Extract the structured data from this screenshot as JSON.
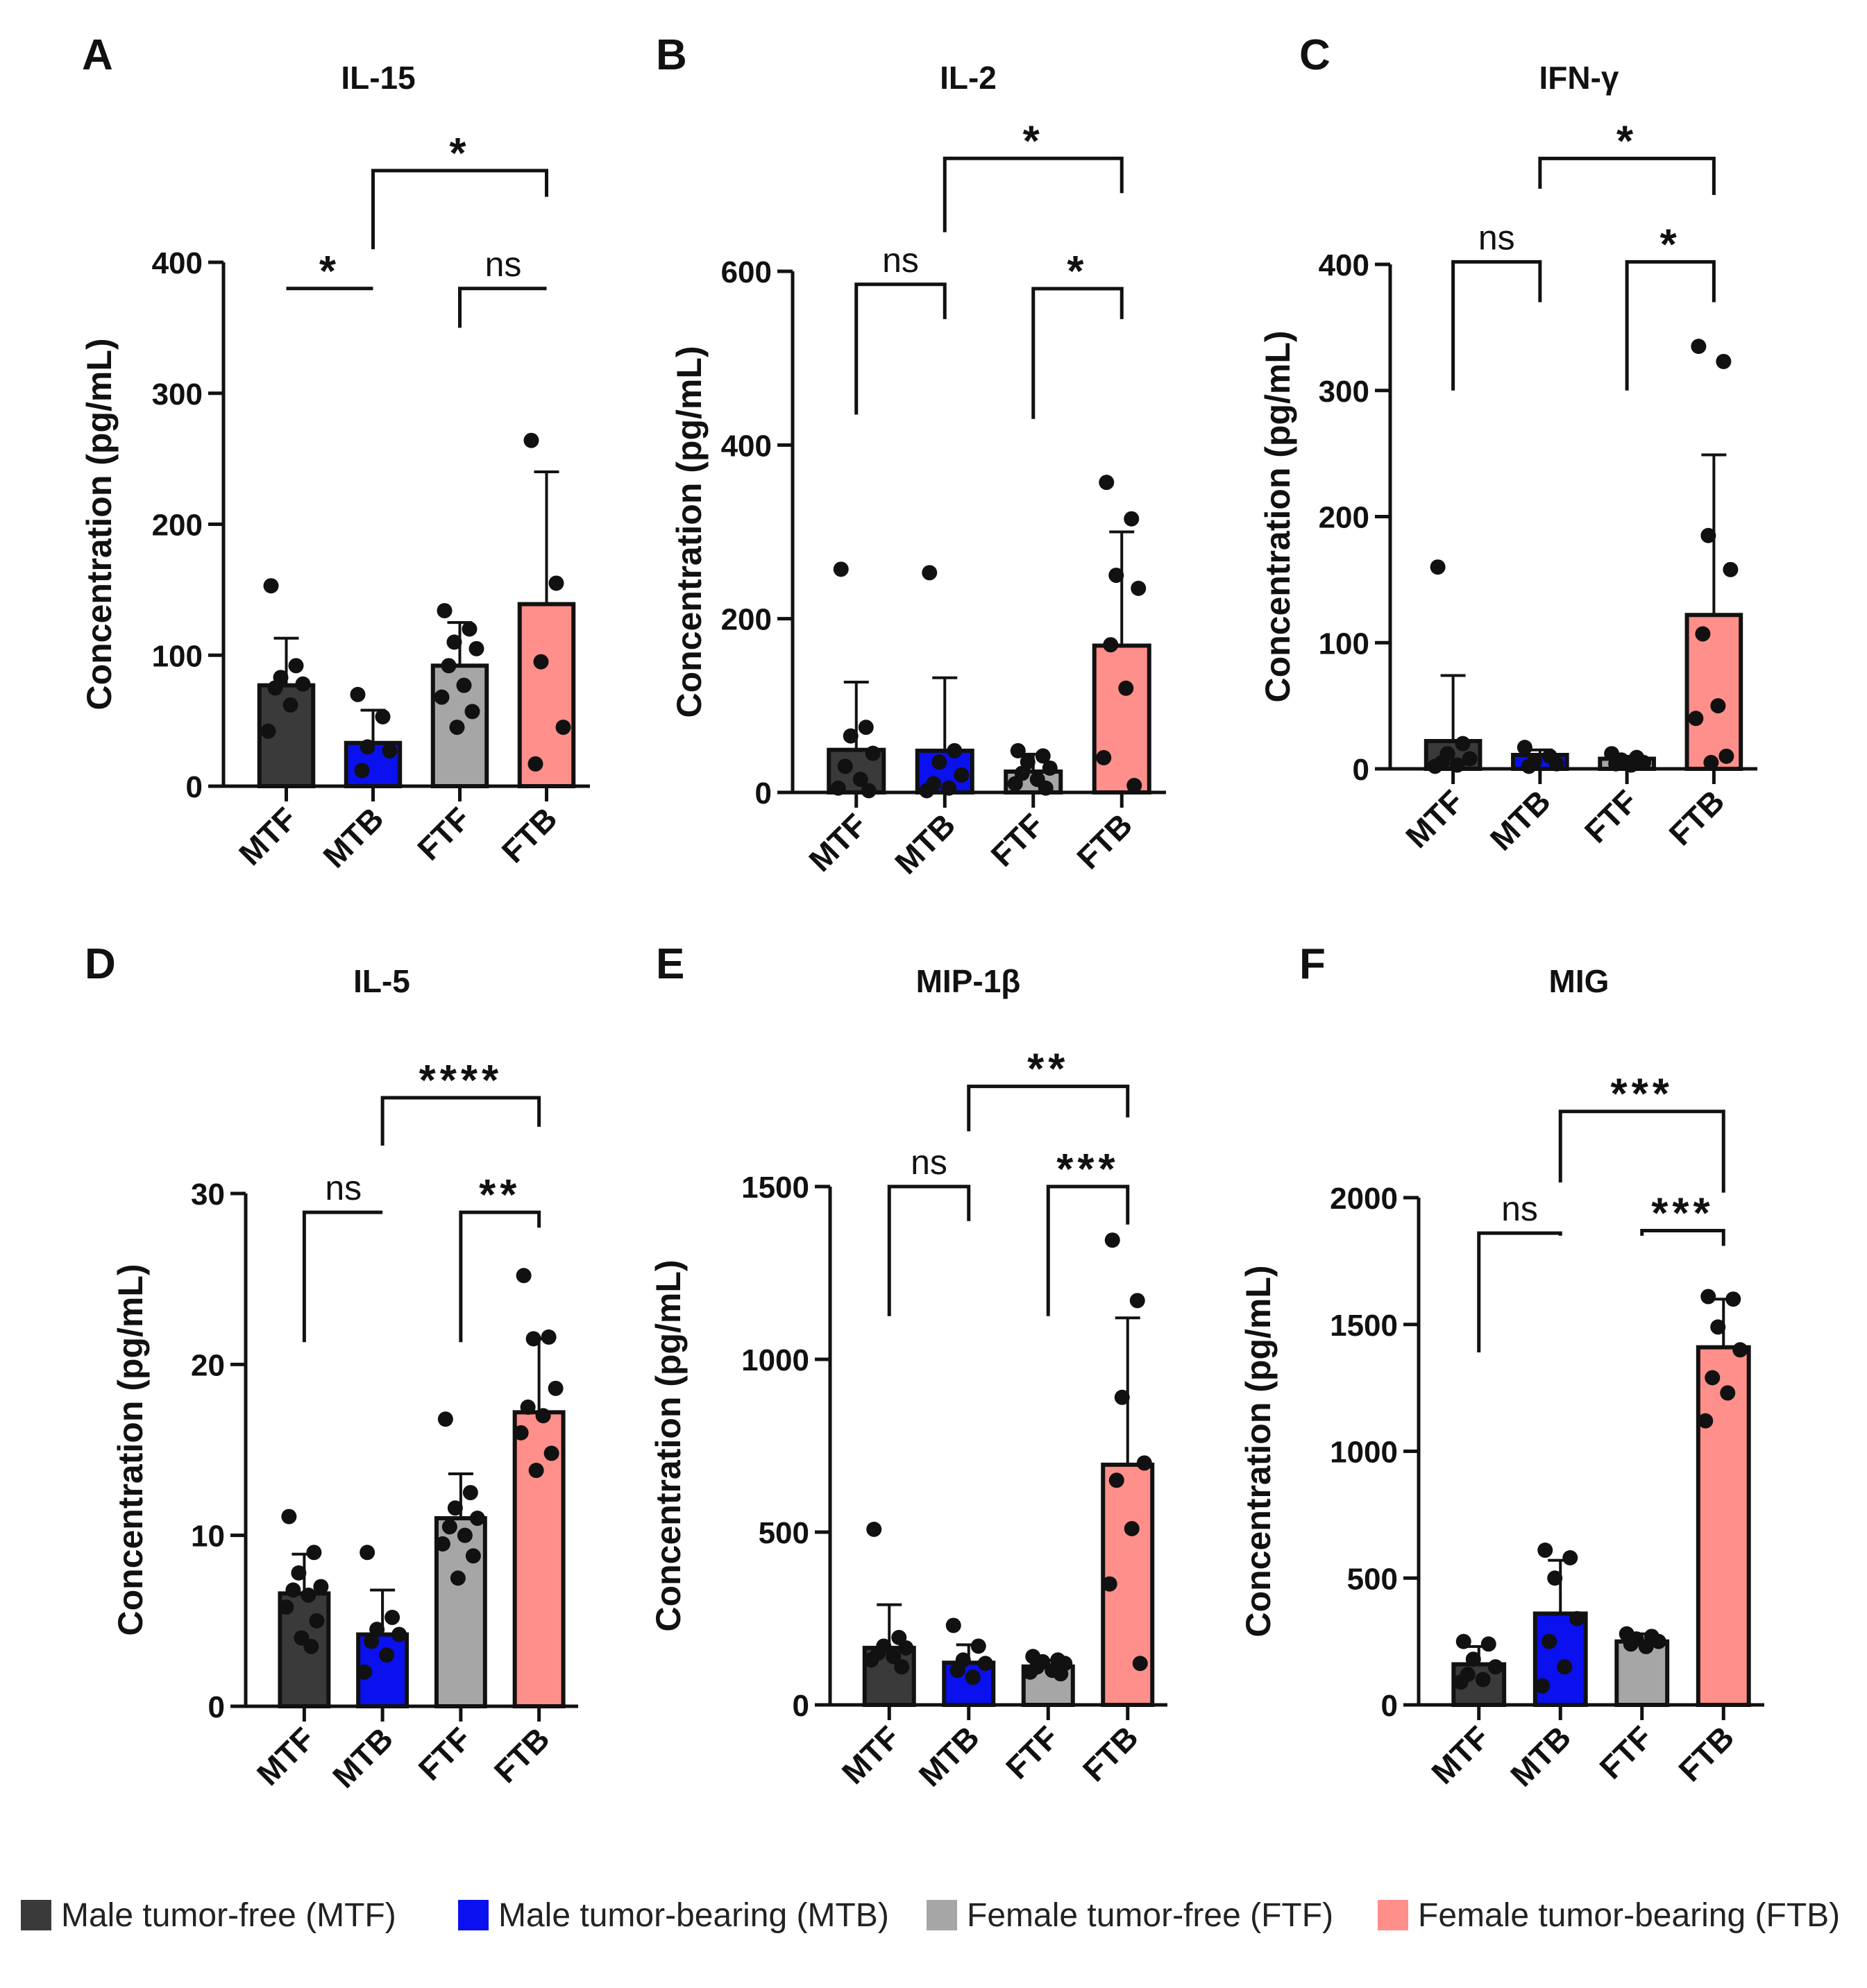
{
  "colors": {
    "MTF": "#3a3a3a",
    "MTB": "#0a10ee",
    "FTF": "#a6a6a6",
    "FTB": "#ff8f8a"
  },
  "legend": [
    {
      "group": "MTF",
      "label": "Male tumor-free (MTF)"
    },
    {
      "group": "MTB",
      "label": "Male tumor-bearing (MTB)"
    },
    {
      "group": "FTF",
      "label": "Female tumor-free (FTF)"
    },
    {
      "group": "FTB",
      "label": "Female tumor-bearing (FTB)"
    }
  ],
  "chart_data": [
    {
      "type": "bar",
      "panel": "A",
      "title": "IL-15",
      "ylabel": "Concentration (pg/mL)",
      "categories": [
        "MTF",
        "MTB",
        "FTF",
        "FTB"
      ],
      "values": [
        77,
        33,
        92,
        139
      ],
      "errors": [
        36,
        25,
        33,
        101
      ],
      "points": [
        [
          153,
          92,
          83,
          78,
          75,
          62,
          42
        ],
        [
          70,
          53,
          30,
          27,
          12
        ],
        [
          134,
          120,
          110,
          105,
          92,
          77,
          68,
          57,
          45
        ],
        [
          264,
          155,
          95,
          45,
          17
        ]
      ],
      "ylim": [
        0,
        400
      ],
      "yticks": [
        0,
        100,
        200,
        300,
        400
      ],
      "significance": [
        {
          "from": 0,
          "to": 1,
          "label": "*",
          "legs": [
            380,
            380
          ],
          "top": 380
        },
        {
          "from": 2,
          "to": 3,
          "label": "ns",
          "legs": [
            350,
            380
          ],
          "top": 380
        },
        {
          "from": 1,
          "to": 3,
          "label": "*",
          "legs": [
            410,
            450
          ],
          "top": 470
        }
      ]
    },
    {
      "type": "bar",
      "panel": "B",
      "title": "IL-2",
      "ylabel": "Concentration (pg/mL)",
      "categories": [
        "MTF",
        "MTB",
        "FTF",
        "FTB"
      ],
      "values": [
        49,
        48,
        24,
        169
      ],
      "errors": [
        78,
        84,
        20,
        131
      ],
      "points": [
        [
          257,
          75,
          65,
          45,
          30,
          15,
          5,
          2
        ],
        [
          253,
          48,
          35,
          20,
          10,
          5,
          2
        ],
        [
          48,
          42,
          35,
          28,
          22,
          15,
          10,
          5
        ],
        [
          357,
          315,
          250,
          235,
          170,
          120,
          40,
          8
        ]
      ],
      "ylim": [
        0,
        600
      ],
      "yticks": [
        0,
        200,
        400,
        600
      ],
      "significance": [
        {
          "from": 0,
          "to": 1,
          "label": "ns",
          "legs": [
            435,
            545
          ],
          "top": 585
        },
        {
          "from": 2,
          "to": 3,
          "label": "*",
          "legs": [
            430,
            545
          ],
          "top": 580
        },
        {
          "from": 1,
          "to": 3,
          "label": "*",
          "legs": [
            645,
            690
          ],
          "top": 730
        }
      ]
    },
    {
      "type": "bar",
      "panel": "C",
      "title": "IFN-γ",
      "ylabel": "Concentration (pg/mL)",
      "categories": [
        "MTF",
        "MTB",
        "FTF",
        "FTB"
      ],
      "values": [
        22,
        11,
        8,
        122
      ],
      "errors": [
        52,
        4,
        2,
        127
      ],
      "points": [
        [
          160,
          20,
          12,
          8,
          5,
          3,
          2
        ],
        [
          17,
          10,
          6,
          4,
          2
        ],
        [
          12,
          9,
          7,
          5,
          4,
          3
        ],
        [
          335,
          323,
          185,
          158,
          107,
          50,
          40,
          10,
          5
        ]
      ],
      "ylim": [
        0,
        400
      ],
      "yticks": [
        0,
        100,
        200,
        300,
        400
      ],
      "significance": [
        {
          "from": 0,
          "to": 1,
          "label": "ns",
          "legs": [
            300,
            370
          ],
          "top": 402
        },
        {
          "from": 2,
          "to": 3,
          "label": "*",
          "legs": [
            300,
            370
          ],
          "top": 402
        },
        {
          "from": 1,
          "to": 3,
          "label": "*",
          "legs": [
            460,
            455
          ],
          "top": 484
        }
      ]
    },
    {
      "type": "bar",
      "panel": "D",
      "title": "IL-5",
      "ylabel": "Concentration (pg/mL)",
      "categories": [
        "MTF",
        "MTB",
        "FTF",
        "FTB"
      ],
      "values": [
        6.6,
        4.2,
        11.0,
        17.2
      ],
      "errors": [
        2.3,
        2.6,
        2.6,
        4.3
      ],
      "points": [
        [
          11.1,
          9.0,
          7.8,
          7.0,
          6.8,
          6.5,
          5.8,
          5.0,
          4.0,
          3.5
        ],
        [
          9.0,
          5.2,
          4.5,
          4.2,
          3.8,
          3.0,
          2.0
        ],
        [
          16.8,
          12.5,
          11.6,
          11.0,
          10.5,
          10.0,
          9.5,
          8.8,
          7.5
        ],
        [
          25.2,
          21.6,
          21.5,
          18.6,
          17.5,
          17.0,
          16.0,
          14.8,
          13.8
        ]
      ],
      "ylim": [
        0,
        30
      ],
      "yticks": [
        0,
        10,
        20,
        30
      ],
      "significance": [
        {
          "from": 0,
          "to": 1,
          "label": "ns",
          "legs": [
            21.3,
            28.9
          ],
          "top": 28.9
        },
        {
          "from": 2,
          "to": 3,
          "label": "**",
          "legs": [
            21.3,
            28.0
          ],
          "top": 28.9
        },
        {
          "from": 1,
          "to": 3,
          "label": "****",
          "legs": [
            32.8,
            33.9
          ],
          "top": 35.6
        }
      ]
    },
    {
      "type": "bar",
      "panel": "E",
      "title": "MIP-1β",
      "ylabel": "Concentration (pg/mL)",
      "categories": [
        "MTF",
        "MTB",
        "FTF",
        "FTB"
      ],
      "values": [
        165,
        122,
        111,
        695
      ],
      "errors": [
        125,
        52,
        18,
        425
      ],
      "points": [
        [
          508,
          195,
          170,
          165,
          150,
          140,
          130,
          110
        ],
        [
          230,
          170,
          130,
          120,
          100,
          80
        ],
        [
          140,
          130,
          125,
          120,
          110,
          100,
          95,
          90
        ],
        [
          1345,
          1170,
          890,
          700,
          650,
          510,
          350,
          120
        ]
      ],
      "ylim": [
        0,
        1500
      ],
      "yticks": [
        0,
        500,
        1000,
        1500
      ],
      "significance": [
        {
          "from": 0,
          "to": 1,
          "label": "ns",
          "legs": [
            1125,
            1400
          ],
          "top": 1500
        },
        {
          "from": 2,
          "to": 3,
          "label": "***",
          "legs": [
            1125,
            1390
          ],
          "top": 1500
        },
        {
          "from": 1,
          "to": 3,
          "label": "**",
          "legs": [
            1660,
            1700
          ],
          "top": 1790
        }
      ]
    },
    {
      "type": "bar",
      "panel": "F",
      "title": "MIG",
      "ylabel": "Concentration (pg/mL)",
      "categories": [
        "MTF",
        "MTB",
        "FTF",
        "FTB"
      ],
      "values": [
        160,
        360,
        250,
        1410
      ],
      "errors": [
        70,
        210,
        30,
        190
      ],
      "points": [
        [
          250,
          240,
          180,
          150,
          120,
          100,
          90
        ],
        [
          610,
          580,
          500,
          340,
          250,
          150,
          75
        ],
        [
          280,
          270,
          260,
          250,
          240,
          230
        ],
        [
          1610,
          1600,
          1490,
          1400,
          1290,
          1230,
          1120
        ]
      ],
      "ylim": [
        0,
        2000
      ],
      "yticks": [
        0,
        500,
        1000,
        1500,
        2000
      ],
      "significance": [
        {
          "from": 0,
          "to": 1,
          "label": "ns",
          "legs": [
            1390,
            1850
          ],
          "top": 1860
        },
        {
          "from": 2,
          "to": 3,
          "label": "***",
          "legs": [
            1850,
            1810
          ],
          "top": 1870
        },
        {
          "from": 1,
          "to": 3,
          "label": "***",
          "legs": [
            2060,
            2020
          ],
          "top": 2340
        }
      ]
    }
  ]
}
